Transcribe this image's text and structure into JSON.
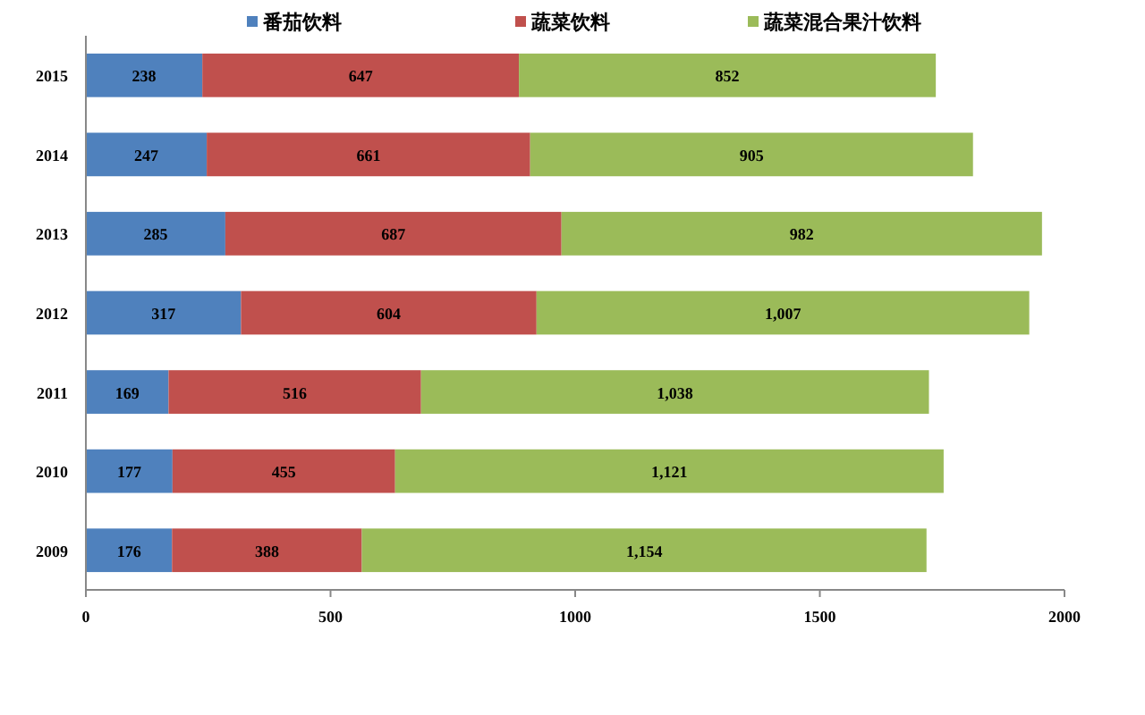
{
  "chart_data": {
    "type": "bar",
    "orientation": "horizontal",
    "stacked": true,
    "categories": [
      "2015",
      "2014",
      "2013",
      "2012",
      "2011",
      "2010",
      "2009"
    ],
    "series": [
      {
        "name": "番茄饮料",
        "color": "#4f81bd",
        "values": [
          238,
          247,
          285,
          317,
          169,
          177,
          176
        ],
        "value_labels": [
          "238",
          "247",
          "285",
          "317",
          "169",
          "177",
          "176"
        ]
      },
      {
        "name": "蔬菜饮料",
        "color": "#c0504d",
        "values": [
          647,
          661,
          687,
          604,
          516,
          455,
          388
        ],
        "value_labels": [
          "647",
          "661",
          "687",
          "604",
          "516",
          "455",
          "388"
        ]
      },
      {
        "name": "蔬菜混合果汁饮料",
        "color": "#9bbb59",
        "values": [
          852,
          905,
          982,
          1007,
          1038,
          1121,
          1154
        ],
        "value_labels": [
          "852",
          "905",
          "982",
          "1,007",
          "1,038",
          "1,121",
          "1,154"
        ]
      }
    ],
    "xlim": [
      0,
      2000
    ],
    "xticks": [
      0,
      500,
      1000,
      1500,
      2000
    ],
    "grid": false,
    "legend": "top"
  }
}
